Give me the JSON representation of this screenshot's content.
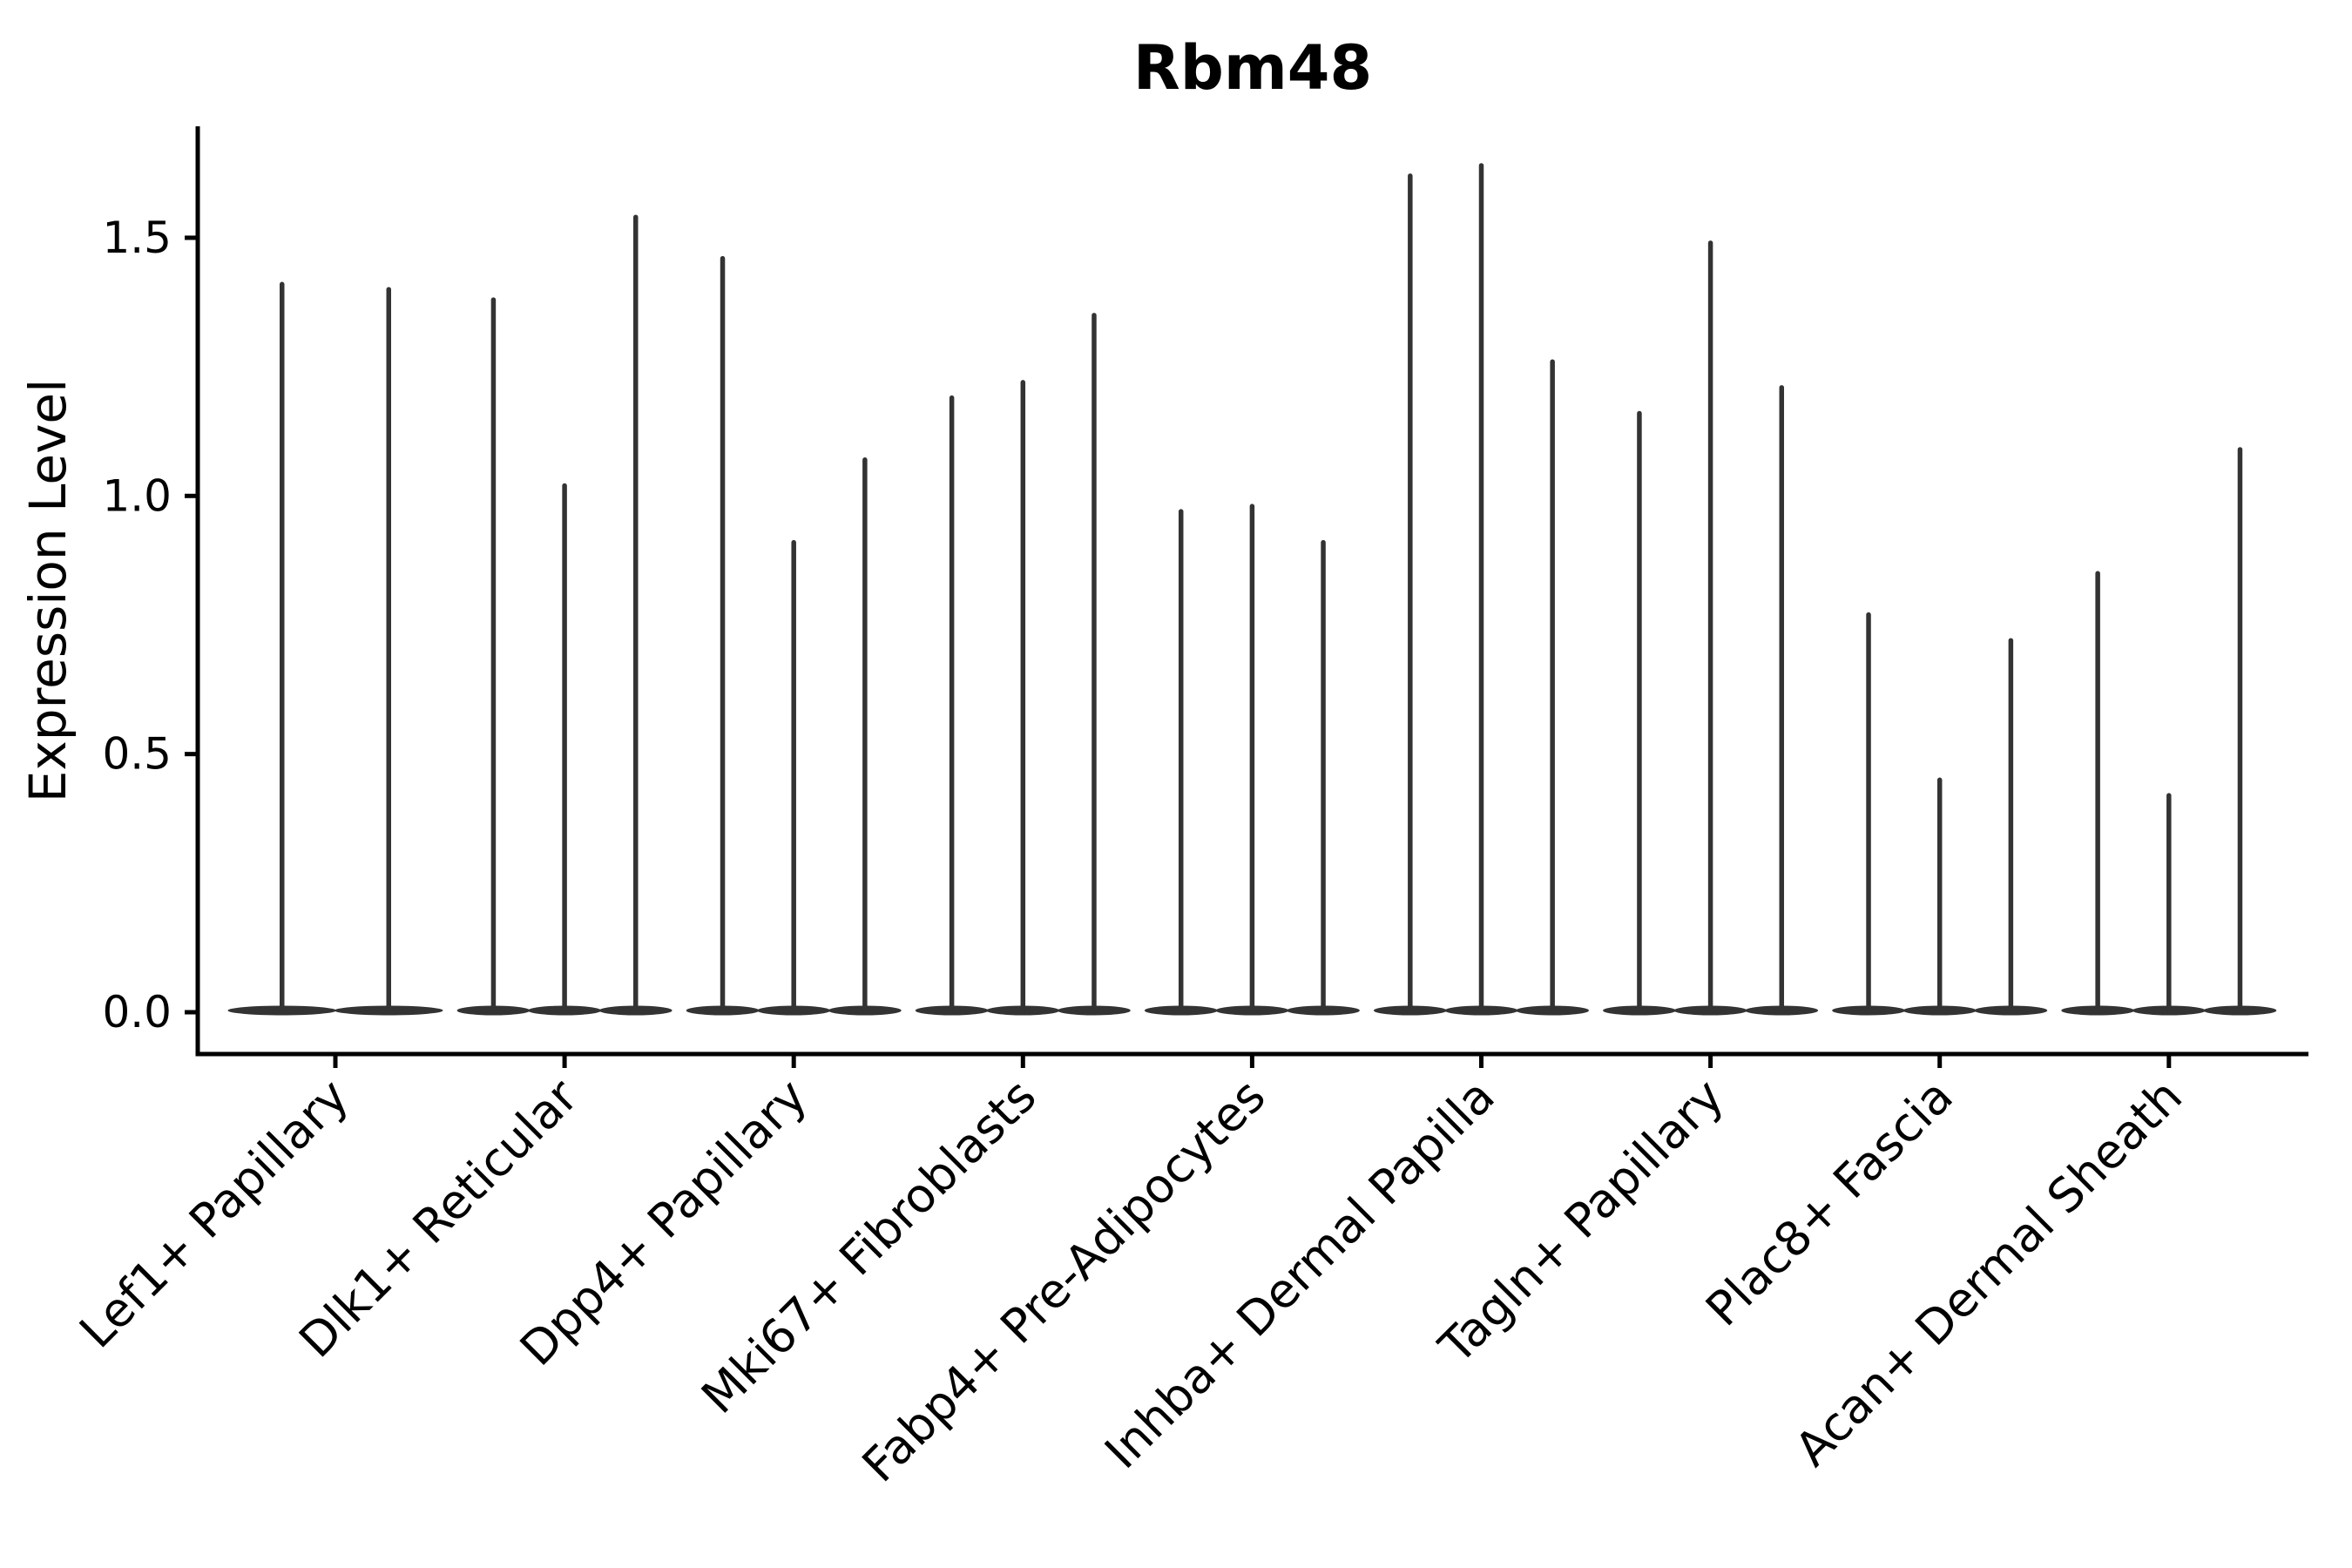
{
  "chart_data": {
    "type": "violin",
    "title": "Rbm48",
    "xlabel": "",
    "ylabel": "Expression Level",
    "ytick_labels": [
      "0.0",
      "0.5",
      "1.0",
      "1.5"
    ],
    "ytick_values": [
      0.0,
      0.5,
      1.0,
      1.5
    ],
    "ylim": [
      -0.08,
      1.72
    ],
    "grid": false,
    "legend": "none",
    "note": "Needle-like violins: expression concentrated at 0 with a thin spike up to the max value; flat wide base at y=0 per violin",
    "categories": [
      "Lef1+ Papillary",
      "Dlk1+ Reticular",
      "Dpp4+ Papillary",
      "Mki67+ Fibroblasts",
      "Fabp4+ Pre-Adipocytes",
      "Inhba+ Dermal Papilla",
      "Tagln+ Papillary",
      "Plac8+ Fascia",
      "Acan+ Dermal Sheath"
    ],
    "groups": [
      {
        "label": "Lef1+ Papillary",
        "violin_max_values": [
          1.41,
          1.4
        ]
      },
      {
        "label": "Dlk1+ Reticular",
        "violin_max_values": [
          1.38,
          1.02,
          1.54
        ]
      },
      {
        "label": "Dpp4+ Papillary",
        "violin_max_values": [
          1.46,
          0.91,
          1.07
        ]
      },
      {
        "label": "Mki67+ Fibroblasts",
        "violin_max_values": [
          1.19,
          1.22,
          1.35
        ]
      },
      {
        "label": "Fabp4+ Pre-Adipocytes",
        "violin_max_values": [
          0.97,
          0.98,
          0.91
        ]
      },
      {
        "label": "Inhba+ Dermal Papilla",
        "violin_max_values": [
          1.62,
          1.64,
          1.26
        ]
      },
      {
        "label": "Tagln+ Papillary",
        "violin_max_values": [
          1.16,
          1.49,
          1.21
        ]
      },
      {
        "label": "Plac8+ Fascia",
        "violin_max_values": [
          0.77,
          0.45,
          0.72
        ]
      },
      {
        "label": "Acan+ Dermal Sheath",
        "violin_max_values": [
          0.85,
          0.42,
          1.09
        ]
      }
    ],
    "colors": {
      "violin": "#333333",
      "axis": "#000000",
      "text": "#000000",
      "background": "#ffffff"
    }
  }
}
